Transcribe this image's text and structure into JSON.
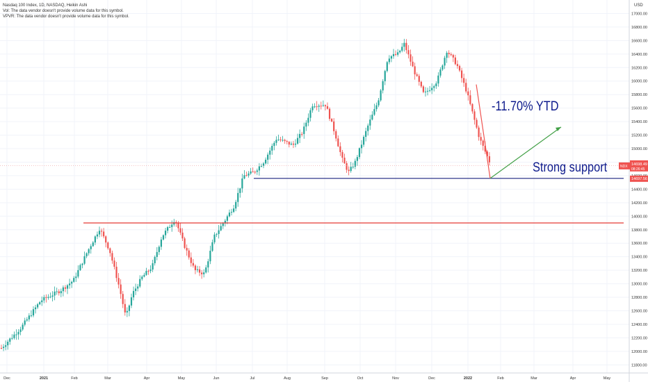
{
  "chart_data": {
    "type": "candlestick",
    "title": "Nasdaq 100 Index, 1D, NASDAQ, Heikin Ashi",
    "legend_lines": [
      "Vol: The data vendor doesn't provide volume data for this symbol.",
      "VPVR: The data vendor doesn't provide volume data for this symbol."
    ],
    "currency": "USD",
    "y_ticks": [
      11800,
      12000,
      12200,
      12400,
      12600,
      12800,
      13000,
      13200,
      13400,
      13600,
      13800,
      14000,
      14200,
      14400,
      14600,
      14800,
      15000,
      15200,
      15400,
      15600,
      15800,
      16000,
      16200,
      16400,
      16600,
      16800,
      17000
    ],
    "y_tick_labels": [
      "11800.00",
      "12000.00",
      "12200.00",
      "12400.00",
      "12600.00",
      "12800.00",
      "13000.00",
      "13200.00",
      "13400.00",
      "13600.00",
      "13800.00",
      "14000.00",
      "14200.00",
      "14400.00",
      "14600.00",
      "14800.00",
      "15000.00",
      "15200.00",
      "15400.00",
      "15600.00",
      "15800.00",
      "16000.00",
      "16200.00",
      "16400.00",
      "16600.00",
      "16800.00",
      "17000.00"
    ],
    "ylim": [
      11680,
      17200
    ],
    "x_labels": [
      "Dec",
      "2021",
      "Feb",
      "Mar",
      "Apr",
      "May",
      "Jun",
      "Jul",
      "Aug",
      "Sep",
      "Oct",
      "Nov",
      "Dec",
      "2022",
      "Feb",
      "Mar",
      "Apr",
      "May"
    ],
    "price_path": [
      [
        0,
        12050
      ],
      [
        0.03,
        12350
      ],
      [
        0.06,
        12750
      ],
      [
        0.09,
        12900
      ],
      [
        0.11,
        13050
      ],
      [
        0.13,
        13450
      ],
      [
        0.15,
        13820
      ],
      [
        0.165,
        13500
      ],
      [
        0.18,
        12950
      ],
      [
        0.19,
        12500
      ],
      [
        0.2,
        12850
      ],
      [
        0.215,
        13100
      ],
      [
        0.23,
        13250
      ],
      [
        0.245,
        13700
      ],
      [
        0.265,
        13960
      ],
      [
        0.28,
        13550
      ],
      [
        0.295,
        13200
      ],
      [
        0.31,
        13150
      ],
      [
        0.325,
        13700
      ],
      [
        0.34,
        13920
      ],
      [
        0.355,
        14150
      ],
      [
        0.37,
        14600
      ],
      [
        0.385,
        14650
      ],
      [
        0.4,
        14800
      ],
      [
        0.42,
        15150
      ],
      [
        0.445,
        15050
      ],
      [
        0.46,
        15250
      ],
      [
        0.475,
        15650
      ],
      [
        0.495,
        15650
      ],
      [
        0.51,
        15200
      ],
      [
        0.52,
        14850
      ],
      [
        0.53,
        14650
      ],
      [
        0.54,
        14800
      ],
      [
        0.56,
        15350
      ],
      [
        0.575,
        15700
      ],
      [
        0.59,
        16350
      ],
      [
        0.605,
        16400
      ],
      [
        0.615,
        16550
      ],
      [
        0.63,
        16150
      ],
      [
        0.645,
        15800
      ],
      [
        0.665,
        16000
      ],
      [
        0.68,
        16450
      ],
      [
        0.695,
        16250
      ],
      [
        0.71,
        15850
      ],
      [
        0.73,
        15150
      ],
      [
        0.745,
        14810
      ]
    ],
    "series": [
      {
        "name": "NDX",
        "last": "14698.49",
        "countdown": "08:26:45"
      }
    ],
    "low_label": "14697.56",
    "annotations": [
      {
        "text": "-11.70% YTD"
      },
      {
        "text": "Strong support"
      }
    ],
    "horizontal_levels": [
      {
        "value": 13900,
        "color": "#e53935"
      },
      {
        "value": 14560,
        "color": "#1a237e"
      }
    ],
    "colors": {
      "up": "#26a69a",
      "down": "#ef5350",
      "arrow_up": "#43a047",
      "arrow_down": "#ef5350",
      "price_tag": "#ef5350"
    }
  }
}
